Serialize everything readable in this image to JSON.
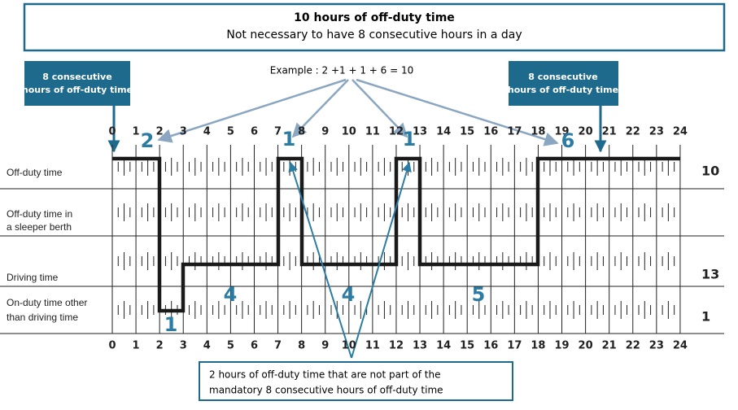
{
  "header": {
    "title": "10 hours of off-duty time",
    "subtitle": "Not necessary to have 8 consecutive hours in a day"
  },
  "callouts": [
    {
      "lines": [
        "8 consecutive",
        "hours of off-duty time"
      ]
    },
    {
      "lines": [
        "8 consecutive",
        "hours of off-duty time"
      ]
    }
  ],
  "example": "Example : 2 +1 + 1 + 6 = 10",
  "hours": [
    "0",
    "1",
    "2",
    "3",
    "4",
    "5",
    "6",
    "7",
    "8",
    "9",
    "10",
    "11",
    "12",
    "13",
    "14",
    "15",
    "16",
    "17",
    "18",
    "19",
    "20",
    "21",
    "22",
    "23",
    "24"
  ],
  "rows": [
    {
      "label": [
        "Off-duty time"
      ],
      "total": "10"
    },
    {
      "label": [
        "Off-duty time in",
        "a sleeper berth"
      ],
      "total": null
    },
    {
      "label": [
        "Driving time"
      ],
      "total": "13"
    },
    {
      "label": [
        "On-duty time other",
        "than driving time"
      ],
      "total": "1"
    }
  ],
  "segments": [
    "2",
    "1",
    "1",
    "6",
    "4",
    "4",
    "5",
    "1"
  ],
  "note": {
    "lines": [
      "2 hours of off-duty time that are not part of the",
      "mandatory 8 consecutive hours of off-duty time"
    ]
  }
}
